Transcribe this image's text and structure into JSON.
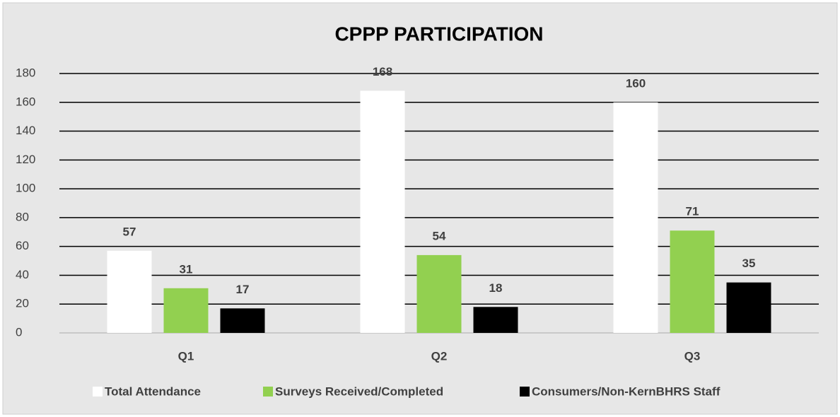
{
  "chart_data": {
    "type": "bar",
    "title": "CPPP PARTICIPATION",
    "categories": [
      "Q1",
      "Q2",
      "Q3"
    ],
    "series": [
      {
        "name": "Total Attendance",
        "color": "#ffffff",
        "values": [
          57,
          168,
          160
        ]
      },
      {
        "name": "Surveys Received/Completed",
        "color": "#92d050",
        "values": [
          31,
          54,
          71
        ]
      },
      {
        "name": "Consumers/Non-KernBHRS Staff",
        "color": "#000000",
        "values": [
          17,
          18,
          35
        ]
      }
    ],
    "ylim": [
      0,
      180
    ],
    "yticks": [
      0,
      20,
      40,
      60,
      80,
      100,
      120,
      140,
      160,
      180
    ],
    "grid": true,
    "legend": "bottom"
  }
}
